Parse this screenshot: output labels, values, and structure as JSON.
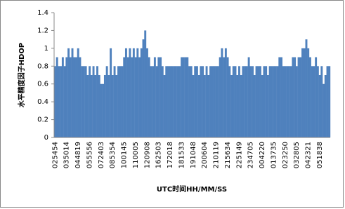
{
  "chart_data": {
    "type": "bar",
    "y_label": "水平精度因子HDOP",
    "x_label": "UTC时间HH/MM/SS",
    "color": "#4f81bd",
    "ylim": [
      0,
      1.4
    ],
    "yticks": [
      0,
      0.2,
      0.4,
      0.6,
      0.8,
      1,
      1.2,
      1.4
    ],
    "grid": false,
    "categories": [
      "025454",
      null,
      null,
      null,
      null,
      null,
      "035014",
      null,
      null,
      null,
      null,
      null,
      "044819",
      null,
      null,
      null,
      null,
      null,
      "055556",
      null,
      null,
      null,
      null,
      null,
      "072403",
      null,
      null,
      null,
      null,
      null,
      "085354",
      null,
      null,
      null,
      null,
      null,
      "100145",
      null,
      null,
      null,
      null,
      null,
      "110005",
      null,
      null,
      null,
      null,
      null,
      "120908",
      null,
      null,
      null,
      null,
      null,
      "162503",
      null,
      null,
      null,
      null,
      null,
      "172018",
      null,
      null,
      null,
      null,
      null,
      "181533",
      null,
      null,
      null,
      null,
      null,
      "191048",
      null,
      null,
      null,
      null,
      null,
      "200604",
      null,
      null,
      null,
      null,
      null,
      "210119",
      null,
      null,
      null,
      null,
      null,
      "215634",
      null,
      null,
      null,
      null,
      null,
      "225149",
      null,
      null,
      null,
      null,
      null,
      "234705",
      null,
      null,
      null,
      null,
      null,
      "004220",
      null,
      null,
      null,
      null,
      null,
      "013735",
      null,
      null,
      null,
      null,
      null,
      "023250",
      null,
      null,
      null,
      null,
      null,
      "032805",
      null,
      null,
      null,
      null,
      null,
      "042321",
      null,
      null,
      null,
      null,
      null,
      "051838",
      null,
      null,
      null,
      null,
      null
    ],
    "values": [
      0.8,
      0.9,
      0.8,
      0.8,
      0.9,
      0.8,
      0.9,
      1.0,
      0.9,
      1.0,
      0.9,
      0.9,
      1.0,
      0.9,
      0.8,
      0.8,
      0.8,
      0.7,
      0.8,
      0.7,
      0.8,
      0.7,
      0.8,
      0.7,
      0.6,
      0.6,
      0.7,
      0.8,
      0.7,
      1.0,
      0.7,
      0.8,
      0.7,
      0.8,
      0.8,
      0.8,
      0.9,
      1.0,
      0.9,
      1.0,
      0.9,
      1.0,
      0.9,
      1.0,
      0.9,
      1.0,
      1.1,
      1.2,
      1.0,
      0.9,
      0.8,
      0.8,
      0.9,
      0.8,
      0.9,
      0.9,
      0.8,
      0.7,
      0.8,
      0.8,
      0.8,
      0.8,
      0.8,
      0.8,
      0.8,
      0.8,
      0.9,
      0.9,
      0.9,
      0.9,
      0.8,
      0.8,
      0.7,
      0.8,
      0.8,
      0.7,
      0.8,
      0.8,
      0.7,
      0.8,
      0.7,
      0.8,
      0.8,
      0.8,
      0.8,
      0.8,
      0.9,
      1.0,
      0.9,
      1.0,
      0.9,
      0.8,
      0.7,
      0.8,
      0.8,
      0.7,
      0.8,
      0.7,
      0.8,
      0.8,
      0.8,
      0.9,
      0.8,
      0.8,
      0.7,
      0.8,
      0.8,
      0.8,
      0.7,
      0.8,
      0.8,
      0.7,
      0.8,
      0.8,
      0.8,
      0.8,
      0.8,
      0.9,
      0.9,
      0.8,
      0.8,
      0.8,
      0.8,
      0.8,
      0.9,
      0.9,
      0.8,
      0.9,
      0.9,
      1.0,
      1.0,
      1.1,
      1.0,
      0.9,
      0.8,
      0.8,
      0.9,
      0.8,
      0.7,
      0.8,
      0.6,
      0.7,
      0.8,
      0.8
    ]
  }
}
